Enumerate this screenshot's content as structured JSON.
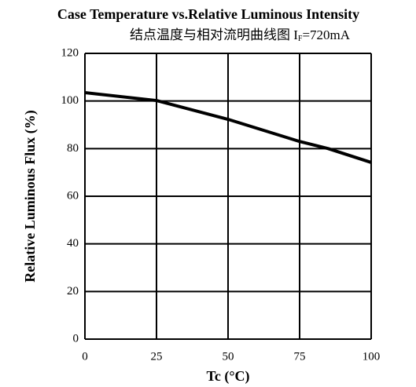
{
  "chart_data": {
    "type": "line",
    "title": "Case Temperature vs.Relative Luminous Intensity",
    "subtitle": [
      "结点温度与相对流明曲线图  I",
      "F",
      "=720mA"
    ],
    "x_label": "Tc (°C)",
    "y_label": "Relative Luminous Flux (%)",
    "x": [
      0,
      25,
      50,
      75,
      85,
      100
    ],
    "series": [
      {
        "color": "#000000",
        "values": [
          103.5,
          100.2,
          92.3,
          83,
          80,
          74.2
        ]
      }
    ],
    "xlim": [
      0,
      100
    ],
    "xticks": [
      0,
      25,
      50,
      75,
      100
    ],
    "ylim": [
      0,
      120
    ],
    "yticks": [
      0,
      20,
      40,
      60,
      80,
      100,
      120
    ],
    "grid": true
  }
}
